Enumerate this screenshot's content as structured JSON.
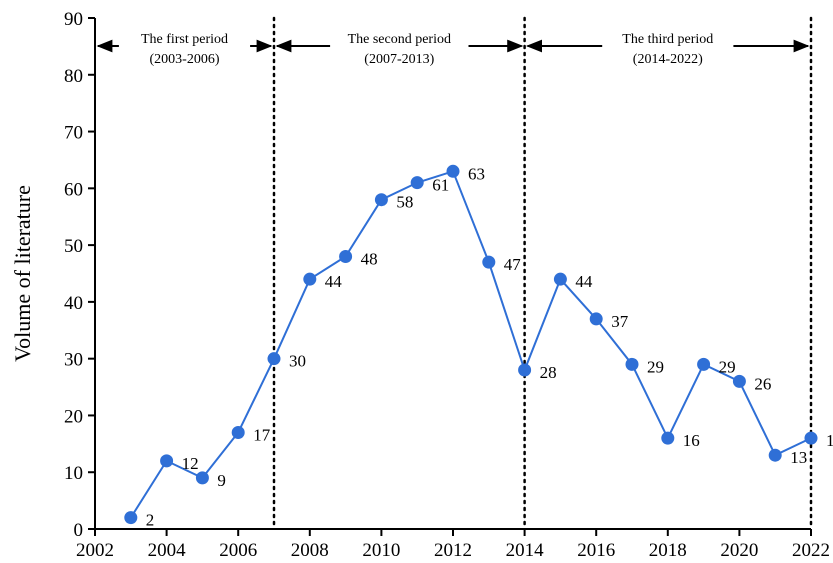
{
  "chart_data": {
    "type": "line",
    "ylabel": "Volume of literature",
    "xlabel": "",
    "xlim": [
      2002,
      2022
    ],
    "ylim": [
      0,
      90
    ],
    "x_ticks": [
      2002,
      2004,
      2006,
      2008,
      2010,
      2012,
      2014,
      2016,
      2018,
      2020,
      2022
    ],
    "y_ticks": [
      0,
      10,
      20,
      30,
      40,
      50,
      60,
      70,
      80,
      90
    ],
    "grid": false,
    "series": [
      {
        "color": "#2f6fd6",
        "points": [
          {
            "x": 2003,
            "y": 2
          },
          {
            "x": 2004,
            "y": 12
          },
          {
            "x": 2005,
            "y": 9
          },
          {
            "x": 2006,
            "y": 17
          },
          {
            "x": 2007,
            "y": 30
          },
          {
            "x": 2008,
            "y": 44
          },
          {
            "x": 2009,
            "y": 48
          },
          {
            "x": 2010,
            "y": 58
          },
          {
            "x": 2011,
            "y": 61
          },
          {
            "x": 2012,
            "y": 63
          },
          {
            "x": 2013,
            "y": 47
          },
          {
            "x": 2014,
            "y": 28
          },
          {
            "x": 2015,
            "y": 44
          },
          {
            "x": 2016,
            "y": 37
          },
          {
            "x": 2017,
            "y": 29
          },
          {
            "x": 2018,
            "y": 16
          },
          {
            "x": 2019,
            "y": 29
          },
          {
            "x": 2020,
            "y": 26
          },
          {
            "x": 2021,
            "y": 13
          },
          {
            "x": 2022,
            "y": 16
          }
        ]
      }
    ],
    "dividers": [
      2007,
      2014,
      2022
    ],
    "periods": [
      {
        "name": "The first period",
        "range": "(2003-2006)",
        "from": 2002,
        "to": 2007
      },
      {
        "name": "The second period",
        "range": "(2007-2013)",
        "from": 2007,
        "to": 2014
      },
      {
        "name": "The third period",
        "range": "(2014-2022)",
        "from": 2014,
        "to": 2022
      }
    ]
  }
}
